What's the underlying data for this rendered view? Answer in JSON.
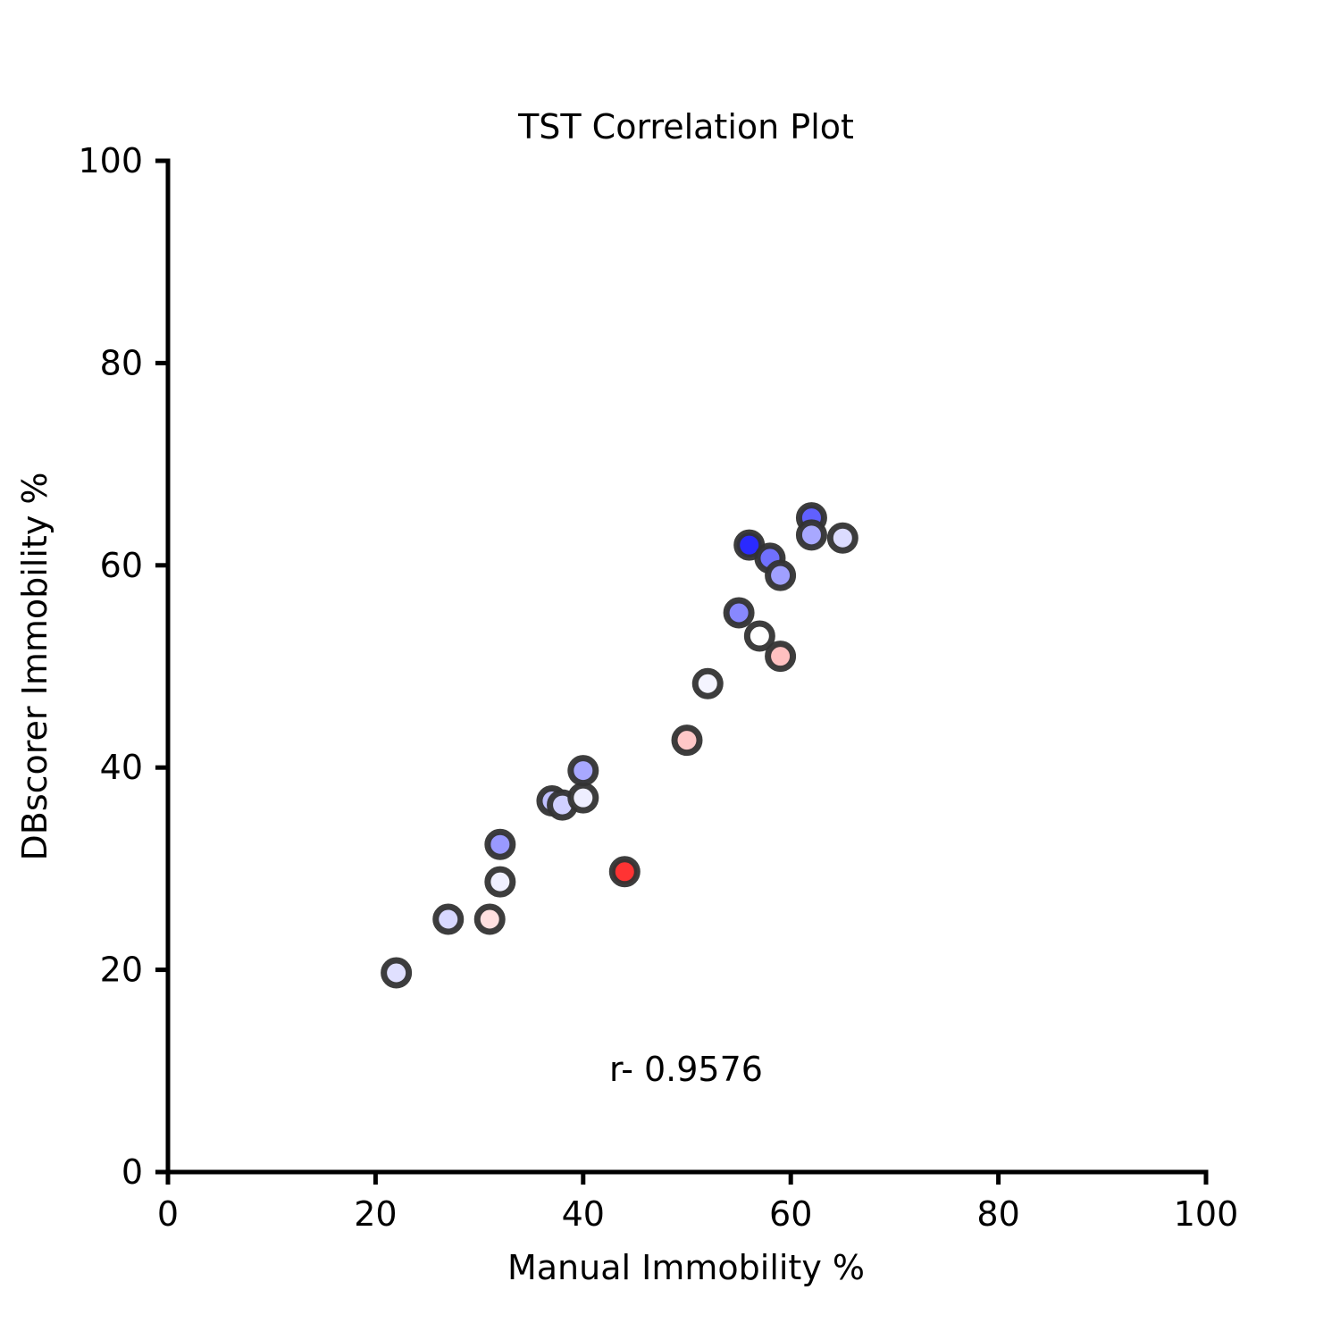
{
  "chart_data": {
    "type": "scatter",
    "title": "TST Correlation Plot",
    "xlabel": "Manual Immobility %",
    "ylabel": "DBscorer Immobility %",
    "xlim": [
      0,
      100
    ],
    "ylim": [
      0,
      100
    ],
    "xticks": [
      "0",
      "20",
      "40",
      "60",
      "80",
      "100"
    ],
    "yticks": [
      "0",
      "20",
      "40",
      "60",
      "80",
      "100"
    ],
    "grid": false,
    "annotation": "r- 0.9576",
    "marker_edge_color": "#333333",
    "points": [
      {
        "x": 22,
        "y": 19.7,
        "color": "#e0e0ff"
      },
      {
        "x": 27,
        "y": 25.0,
        "color": "#d8d8ff"
      },
      {
        "x": 31,
        "y": 25.0,
        "color": "#ffe0e0"
      },
      {
        "x": 32,
        "y": 28.7,
        "color": "#f0f0ff"
      },
      {
        "x": 32,
        "y": 32.4,
        "color": "#9999ff"
      },
      {
        "x": 37,
        "y": 36.7,
        "color": "#c0c0ff"
      },
      {
        "x": 38,
        "y": 36.3,
        "color": "#d0d0ff"
      },
      {
        "x": 40,
        "y": 37.0,
        "color": "#eeeeff"
      },
      {
        "x": 40,
        "y": 39.7,
        "color": "#a8a8ff"
      },
      {
        "x": 44,
        "y": 29.7,
        "color": "#ff3333"
      },
      {
        "x": 50,
        "y": 42.7,
        "color": "#ffc8c8"
      },
      {
        "x": 52,
        "y": 48.3,
        "color": "#f4f4ff"
      },
      {
        "x": 55,
        "y": 55.3,
        "color": "#8888ff"
      },
      {
        "x": 57,
        "y": 53.0,
        "color": "#ffffff"
      },
      {
        "x": 59,
        "y": 51.0,
        "color": "#ffc0c0"
      },
      {
        "x": 56,
        "y": 62.0,
        "color": "#2a2aff"
      },
      {
        "x": 58,
        "y": 60.7,
        "color": "#7070ff"
      },
      {
        "x": 59,
        "y": 59.0,
        "color": "#a0a0ff"
      },
      {
        "x": 62,
        "y": 64.7,
        "color": "#6060ff"
      },
      {
        "x": 62,
        "y": 63.0,
        "color": "#a8a8ff"
      },
      {
        "x": 65,
        "y": 62.7,
        "color": "#dcdcff"
      }
    ]
  }
}
